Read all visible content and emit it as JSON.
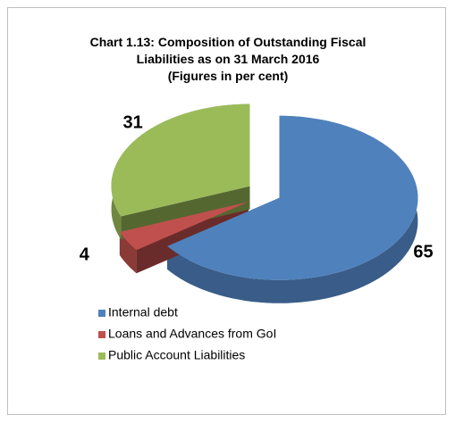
{
  "chart_data": {
    "type": "pie3d",
    "title": "Chart 1.13: Composition of Outstanding Fiscal Liabilities as on 31 March 2016",
    "subtitle": "(Figures in per cent)",
    "categories": [
      "Internal debt",
      "Loans and Advances from GoI",
      "Public Account Liabilities"
    ],
    "values": [
      65,
      4,
      31
    ],
    "colors": [
      "#4f81bd",
      "#c0504d",
      "#9bbb59"
    ],
    "legend": "bottom-left"
  }
}
